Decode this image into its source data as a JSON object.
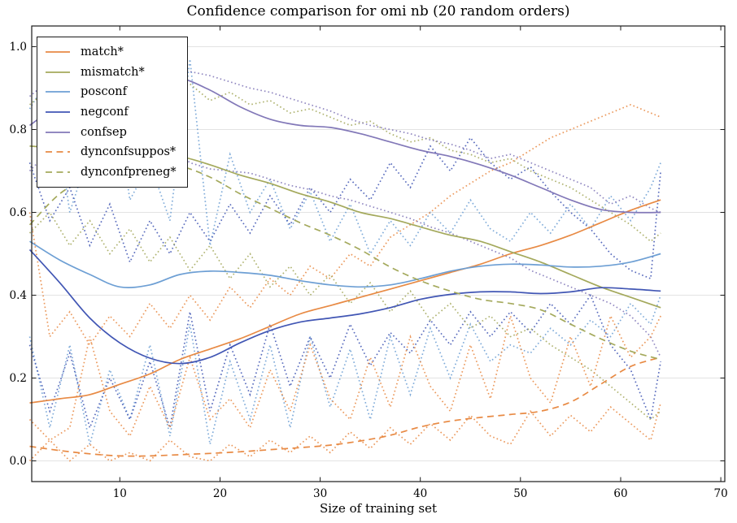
{
  "figure": {
    "title": "Confidence comparison for omi nb (20 random orders)",
    "xlabel": "Size of training set"
  },
  "chart_data": {
    "type": "line",
    "title": "Confidence comparison for omi nb (20 random orders)",
    "xlabel": "Size of training set",
    "ylabel": "",
    "xlim": [
      1.2,
      70.4
    ],
    "ylim": [
      -0.05,
      1.05
    ],
    "x_ticks": [
      "10",
      "20",
      "30",
      "40",
      "50",
      "60",
      "70"
    ],
    "y_ticks": [
      "0.0",
      "0.2",
      "0.4",
      "0.6",
      "0.8",
      "1.0"
    ],
    "x_tick_values": [
      10,
      20,
      30,
      40,
      50,
      60,
      70
    ],
    "y_tick_values": [
      0.0,
      0.2,
      0.4,
      0.6,
      0.8,
      1.0
    ],
    "grid": "horizontal",
    "legend_position": "upper-left",
    "colors": {
      "match": "#e88a44",
      "mismatch": "#a4a95c",
      "posconf": "#6d9fd4",
      "negconf": "#4156b4",
      "confsep": "#8278b8",
      "grid": "#e3e3e3",
      "axis": "#1a1a1a",
      "background": "#ffffff"
    },
    "x": [
      1,
      4,
      7,
      10,
      13,
      16,
      19,
      22,
      25,
      28,
      31,
      34,
      37,
      40,
      43,
      46,
      49,
      52,
      55,
      58,
      61,
      64
    ],
    "series": [
      {
        "name": "match*",
        "color": "match",
        "style": "solid",
        "values": [
          0.14,
          0.15,
          0.16,
          0.185,
          0.21,
          0.245,
          0.27,
          0.295,
          0.325,
          0.355,
          0.375,
          0.395,
          0.415,
          0.435,
          0.455,
          0.475,
          0.5,
          0.52,
          0.545,
          0.575,
          0.605,
          0.63
        ]
      },
      {
        "name": "mismatch*",
        "color": "mismatch",
        "style": "solid",
        "values": [
          0.76,
          0.755,
          0.75,
          0.745,
          0.74,
          0.735,
          0.715,
          0.69,
          0.67,
          0.645,
          0.625,
          0.6,
          0.585,
          0.565,
          0.545,
          0.53,
          0.505,
          0.48,
          0.45,
          0.42,
          0.395,
          0.37
        ]
      },
      {
        "name": "posconf",
        "color": "posconf",
        "style": "solid",
        "values": [
          0.53,
          0.485,
          0.45,
          0.42,
          0.425,
          0.45,
          0.458,
          0.455,
          0.448,
          0.435,
          0.425,
          0.42,
          0.425,
          0.44,
          0.458,
          0.47,
          0.475,
          0.473,
          0.468,
          0.47,
          0.48,
          0.5
        ]
      },
      {
        "name": "negconf",
        "color": "negconf",
        "style": "solid",
        "values": [
          0.51,
          0.43,
          0.345,
          0.285,
          0.248,
          0.235,
          0.25,
          0.285,
          0.315,
          0.335,
          0.345,
          0.355,
          0.37,
          0.39,
          0.402,
          0.408,
          0.408,
          0.404,
          0.408,
          0.418,
          0.415,
          0.41
        ]
      },
      {
        "name": "confsep",
        "color": "confsep",
        "style": "solid",
        "values": [
          0.81,
          0.862,
          0.9,
          0.922,
          0.93,
          0.925,
          0.895,
          0.855,
          0.825,
          0.81,
          0.805,
          0.79,
          0.77,
          0.75,
          0.735,
          0.715,
          0.69,
          0.66,
          0.63,
          0.607,
          0.6,
          0.6
        ]
      },
      {
        "name": "dynconfsuppos*",
        "color": "match",
        "style": "dashed",
        "values": [
          0.035,
          0.025,
          0.017,
          0.012,
          0.012,
          0.015,
          0.018,
          0.022,
          0.027,
          0.032,
          0.038,
          0.048,
          0.062,
          0.082,
          0.096,
          0.105,
          0.112,
          0.12,
          0.142,
          0.185,
          0.228,
          0.25
        ]
      },
      {
        "name": "dynconfpreneg*",
        "color": "mismatch",
        "style": "dashed",
        "values": [
          0.57,
          0.645,
          0.685,
          0.705,
          0.718,
          0.712,
          0.685,
          0.645,
          0.61,
          0.575,
          0.545,
          0.51,
          0.468,
          0.435,
          0.41,
          0.39,
          0.38,
          0.365,
          0.33,
          0.295,
          0.265,
          0.245
        ]
      }
    ],
    "bands": {
      "note": "dotted spread lines of the 20 random orders",
      "x": [
        1,
        3,
        5,
        7,
        9,
        11,
        13,
        15,
        17,
        19,
        21,
        23,
        25,
        27,
        29,
        31,
        33,
        35,
        37,
        39,
        41,
        43,
        45,
        47,
        49,
        51,
        53,
        55,
        57,
        59,
        61,
        63,
        64
      ],
      "series": [
        {
          "name": "posconf-upper",
          "color": "posconf",
          "values": [
            0.85,
            0.93,
            0.6,
            0.75,
            0.95,
            0.63,
            0.72,
            0.58,
            0.97,
            0.52,
            0.74,
            0.6,
            0.68,
            0.56,
            0.65,
            0.53,
            0.62,
            0.5,
            0.58,
            0.52,
            0.6,
            0.55,
            0.63,
            0.56,
            0.53,
            0.6,
            0.55,
            0.62,
            0.56,
            0.64,
            0.58,
            0.66,
            0.72
          ]
        },
        {
          "name": "posconf-lower",
          "color": "posconf",
          "values": [
            0.3,
            0.08,
            0.28,
            0.04,
            0.22,
            0.1,
            0.28,
            0.06,
            0.33,
            0.04,
            0.24,
            0.1,
            0.28,
            0.08,
            0.3,
            0.13,
            0.27,
            0.1,
            0.3,
            0.16,
            0.32,
            0.2,
            0.33,
            0.24,
            0.28,
            0.26,
            0.32,
            0.28,
            0.34,
            0.3,
            0.38,
            0.33,
            0.4
          ]
        },
        {
          "name": "negconf-upper",
          "color": "negconf",
          "values": [
            0.72,
            0.58,
            0.66,
            0.52,
            0.62,
            0.48,
            0.58,
            0.5,
            0.6,
            0.53,
            0.62,
            0.55,
            0.64,
            0.57,
            0.66,
            0.6,
            0.68,
            0.63,
            0.72,
            0.66,
            0.76,
            0.7,
            0.78,
            0.72,
            0.68,
            0.71,
            0.65,
            0.6,
            0.56,
            0.5,
            0.46,
            0.44,
            0.7
          ]
        },
        {
          "name": "negconf-lower",
          "color": "negconf",
          "values": [
            0.28,
            0.12,
            0.26,
            0.08,
            0.2,
            0.1,
            0.24,
            0.08,
            0.36,
            0.12,
            0.28,
            0.16,
            0.33,
            0.18,
            0.3,
            0.2,
            0.33,
            0.23,
            0.31,
            0.26,
            0.34,
            0.28,
            0.36,
            0.3,
            0.36,
            0.31,
            0.38,
            0.33,
            0.4,
            0.28,
            0.22,
            0.1,
            0.24
          ]
        },
        {
          "name": "match-upper",
          "color": "match",
          "values": [
            0.6,
            0.3,
            0.36,
            0.28,
            0.35,
            0.3,
            0.38,
            0.32,
            0.4,
            0.34,
            0.42,
            0.37,
            0.44,
            0.4,
            0.47,
            0.44,
            0.5,
            0.47,
            0.54,
            0.57,
            0.6,
            0.64,
            0.67,
            0.7,
            0.72,
            0.75,
            0.78,
            0.8,
            0.82,
            0.84,
            0.86,
            0.84,
            0.83
          ]
        },
        {
          "name": "match-lower",
          "color": "match",
          "values": [
            0.0,
            0.05,
            0.0,
            0.04,
            0.0,
            0.02,
            0.0,
            0.05,
            0.01,
            0.0,
            0.04,
            0.01,
            0.05,
            0.02,
            0.06,
            0.02,
            0.07,
            0.03,
            0.08,
            0.04,
            0.09,
            0.05,
            0.11,
            0.06,
            0.04,
            0.12,
            0.06,
            0.11,
            0.07,
            0.13,
            0.09,
            0.05,
            0.14
          ]
        },
        {
          "name": "mismatch-upper",
          "color": "mismatch",
          "values": [
            0.86,
            0.9,
            0.94,
            0.88,
            0.92,
            0.95,
            0.92,
            0.89,
            0.91,
            0.87,
            0.89,
            0.86,
            0.87,
            0.84,
            0.85,
            0.83,
            0.81,
            0.82,
            0.79,
            0.77,
            0.78,
            0.75,
            0.74,
            0.72,
            0.73,
            0.7,
            0.68,
            0.66,
            0.63,
            0.6,
            0.57,
            0.53,
            0.55
          ]
        },
        {
          "name": "mismatch-lower",
          "color": "mismatch",
          "values": [
            0.55,
            0.6,
            0.52,
            0.58,
            0.5,
            0.56,
            0.48,
            0.54,
            0.46,
            0.52,
            0.44,
            0.5,
            0.42,
            0.47,
            0.4,
            0.45,
            0.38,
            0.43,
            0.36,
            0.41,
            0.34,
            0.38,
            0.32,
            0.35,
            0.3,
            0.32,
            0.28,
            0.25,
            0.22,
            0.18,
            0.14,
            0.1,
            0.12
          ]
        },
        {
          "name": "confsep-upper",
          "color": "confsep",
          "values": [
            0.88,
            0.92,
            0.95,
            0.97,
            0.98,
            0.975,
            0.98,
            0.96,
            0.94,
            0.93,
            0.915,
            0.9,
            0.89,
            0.875,
            0.86,
            0.845,
            0.825,
            0.81,
            0.8,
            0.79,
            0.775,
            0.765,
            0.75,
            0.73,
            0.74,
            0.72,
            0.7,
            0.68,
            0.66,
            0.62,
            0.64,
            0.61,
            0.6
          ]
        },
        {
          "name": "confsep-lower",
          "color": "confsep",
          "values": [
            0.7,
            0.75,
            0.8,
            0.83,
            0.855,
            0.85,
            0.8,
            0.76,
            0.72,
            0.705,
            0.7,
            0.695,
            0.68,
            0.665,
            0.655,
            0.64,
            0.63,
            0.615,
            0.6,
            0.585,
            0.565,
            0.55,
            0.53,
            0.51,
            0.49,
            0.46,
            0.44,
            0.42,
            0.4,
            0.38,
            0.35,
            0.3,
            0.25
          ]
        },
        {
          "name": "dynconfsuppos-upper",
          "color": "match",
          "values": [
            0.1,
            0.05,
            0.08,
            0.3,
            0.12,
            0.06,
            0.18,
            0.08,
            0.25,
            0.1,
            0.15,
            0.08,
            0.22,
            0.12,
            0.28,
            0.15,
            0.1,
            0.25,
            0.13,
            0.3,
            0.18,
            0.12,
            0.28,
            0.15,
            0.35,
            0.2,
            0.14,
            0.3,
            0.18,
            0.35,
            0.25,
            0.3,
            0.35
          ]
        }
      ]
    }
  }
}
